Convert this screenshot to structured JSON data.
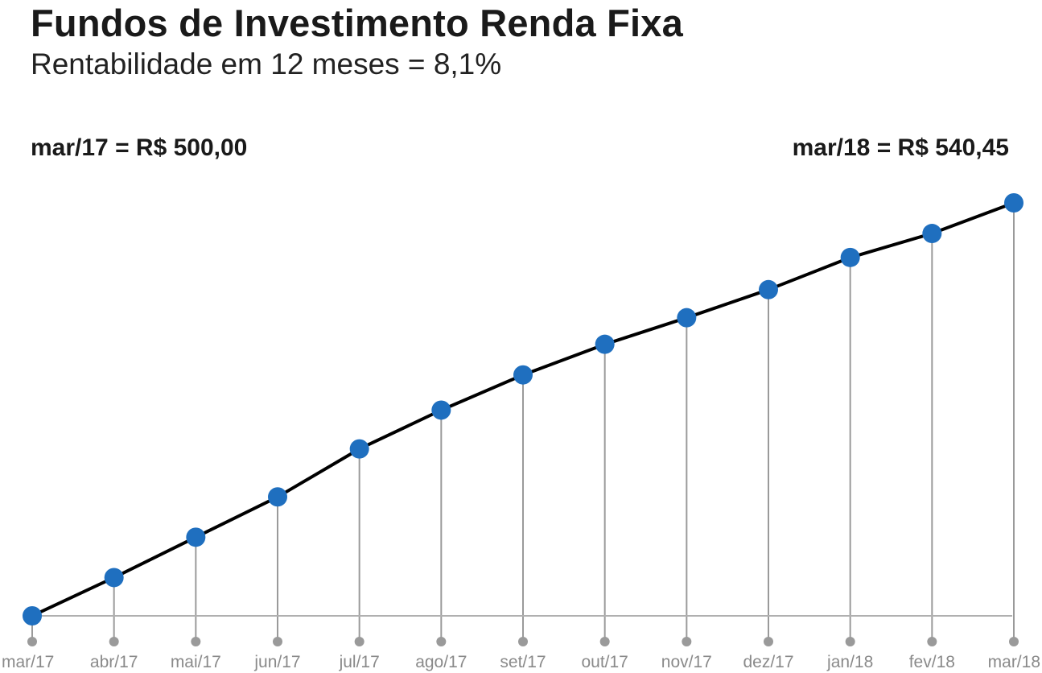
{
  "header": {
    "title": "Fundos de Investimento Renda Fixa",
    "subtitle": "Rentabilidade em 12 meses = 8,1%"
  },
  "annotations": {
    "start": "mar/17 = R$ 500,00",
    "end": "mar/18 = R$ 540,45"
  },
  "colors": {
    "point": "#1f6fbf",
    "line": "#000000",
    "drop_line": "#9a9a9a",
    "baseline": "#b0b0b0",
    "tick_dot": "#9a9a9a",
    "tick_label": "#8a8a8a"
  },
  "chart_data": {
    "type": "line",
    "title": "Fundos de Investimento Renda Fixa",
    "subtitle": "Rentabilidade em 12 meses = 8,1%",
    "xlabel": "",
    "ylabel": "",
    "grid": false,
    "categories": [
      "mar/17",
      "abr/17",
      "mai/17",
      "jun/17",
      "jul/17",
      "ago/17",
      "set/17",
      "out/17",
      "nov/17",
      "dez/17",
      "jan/18",
      "fev/18",
      "mar/18"
    ],
    "values": [
      500.0,
      503.75,
      507.7,
      511.65,
      516.35,
      520.15,
      523.6,
      526.6,
      529.2,
      531.95,
      535.1,
      537.45,
      540.45
    ],
    "ylim": [
      500.0,
      540.45
    ]
  }
}
